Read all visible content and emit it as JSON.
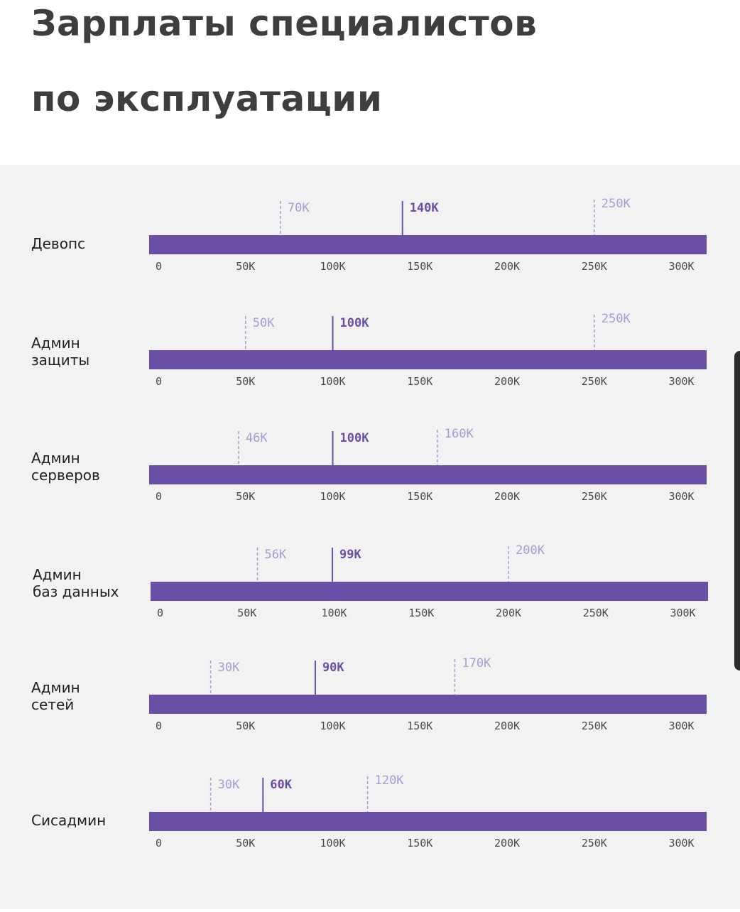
{
  "title": {
    "line1": "Зарплаты специалистов",
    "line2": "по эксплуатации"
  },
  "colors": {
    "bar": "#6a4fa6",
    "median": "#6a4fa6",
    "range": "#a99bd2",
    "panel": "#f2f2f2",
    "title": "#3e3e3e"
  },
  "chart_data": {
    "type": "bar",
    "orientation": "horizontal",
    "xlim": [
      0,
      320
    ],
    "ticks": [
      0,
      50,
      100,
      150,
      200,
      250,
      300
    ],
    "tick_labels": [
      "0",
      "50K",
      "100K",
      "150K",
      "200K",
      "250K",
      "300K"
    ],
    "grid": false,
    "legend": "none",
    "rows": [
      {
        "label": [
          "Девопс"
        ],
        "min": 70,
        "median": 140,
        "max": 250,
        "min_label": "70K",
        "median_label": "140K",
        "max_label": "250K"
      },
      {
        "label": [
          "Админ",
          "защиты"
        ],
        "min": 50,
        "median": 100,
        "max": 250,
        "min_label": "50K",
        "median_label": "100K",
        "max_label": "250K"
      },
      {
        "label": [
          "Админ",
          "серверов"
        ],
        "min": 46,
        "median": 100,
        "max": 160,
        "min_label": "46K",
        "median_label": "100K",
        "max_label": "160K"
      },
      {
        "label": [
          "Админ",
          "баз данных"
        ],
        "min": 56,
        "median": 99,
        "max": 200,
        "min_label": "56K",
        "median_label": "99K",
        "max_label": "200K"
      },
      {
        "label": [
          "Админ",
          "сетей"
        ],
        "min": 30,
        "median": 90,
        "max": 170,
        "min_label": "30K",
        "median_label": "90K",
        "max_label": "170K"
      },
      {
        "label": [
          "Сисадмин"
        ],
        "min": 30,
        "median": 60,
        "max": 120,
        "min_label": "30K",
        "median_label": "60K",
        "max_label": "120K"
      }
    ]
  }
}
